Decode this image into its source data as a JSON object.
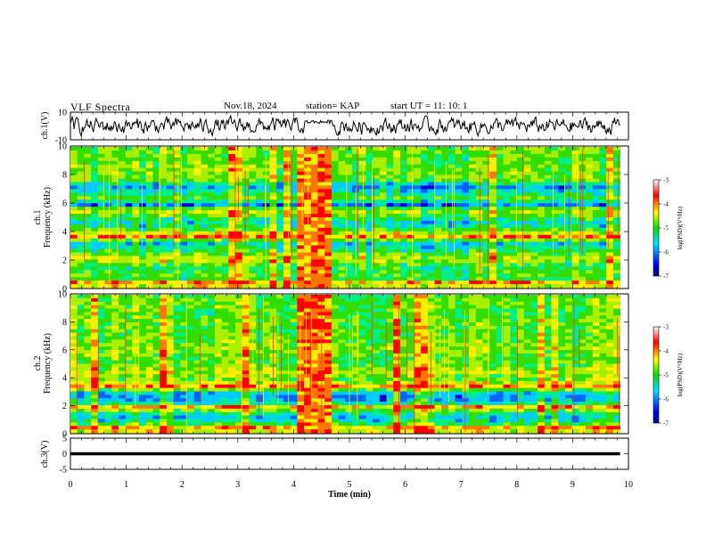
{
  "header": {
    "title": "VLF Spectra",
    "date": "Nov.18, 2024",
    "station": "station= KAP",
    "start_ut": "start  UT =   11: 10: 1"
  },
  "chart_data": [
    {
      "id": "ch1-waveform",
      "type": "line",
      "ylabel": "ch.1(V)",
      "ylim": [
        -10,
        10
      ],
      "yticks": [
        "10",
        "-10"
      ],
      "xlim": [
        0,
        10
      ],
      "data_end_min": 9.85,
      "description_series": "noisy waveform oscillating roughly between -7 and +7 V; an elevated quiet segment near 4.2-4.7 min"
    },
    {
      "id": "ch1-spectrogram",
      "type": "heatmap",
      "ylabel": "ch.1",
      "ylabel2": "Frequency (kHz)",
      "ylim": [
        0,
        10
      ],
      "yticks": [
        "0",
        "2",
        "4",
        "6",
        "8",
        "10"
      ],
      "xlim": [
        0,
        10
      ],
      "data_end_min": 9.85,
      "event_window_min": [
        4.1,
        4.7
      ],
      "colorbar": {
        "label": "log(PSD)(V²/Hz)",
        "range": [
          -7,
          -3
        ],
        "ticks": [
          "-3",
          "-4",
          "-5",
          "-6",
          "-7"
        ]
      }
    },
    {
      "id": "ch2-spectrogram",
      "type": "heatmap",
      "ylabel": "ch.2",
      "ylabel2": "Frequency (kHz)",
      "ylim": [
        0,
        10
      ],
      "yticks": [
        "0",
        "2",
        "4",
        "6",
        "8",
        "10"
      ],
      "xlim": [
        0,
        10
      ],
      "data_end_min": 9.85,
      "event_window_min": [
        4.1,
        4.7
      ],
      "colorbar": {
        "label": "log(PSD)(V²/Hz)",
        "range": [
          -7,
          -3
        ],
        "ticks": [
          "-3",
          "-4",
          "-5",
          "-6",
          "-7"
        ]
      }
    },
    {
      "id": "ch3-waveform",
      "type": "line",
      "ylabel": "ch.3(V)",
      "ylim": [
        -5,
        5
      ],
      "yticks": [
        "5",
        "0",
        "-5"
      ],
      "xlim": [
        0,
        10
      ],
      "data_end_min": 9.85,
      "level_band_v": [
        -0.5,
        0.5
      ]
    }
  ],
  "xaxis": {
    "label": "Time  (min)",
    "ticks": [
      "0",
      "1",
      "2",
      "3",
      "4",
      "5",
      "6",
      "7",
      "8",
      "9",
      "10"
    ],
    "range": [
      0,
      10
    ]
  }
}
